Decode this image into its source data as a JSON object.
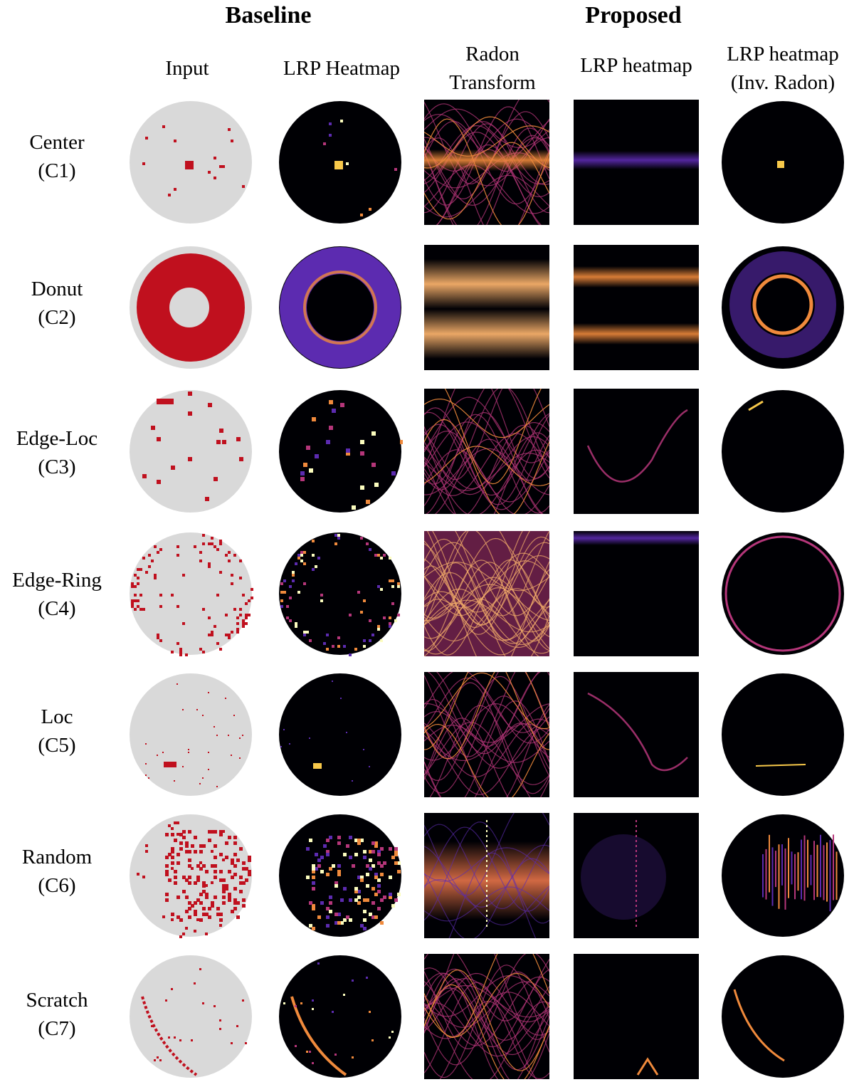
{
  "titles": {
    "baseline": "Baseline",
    "proposed": "Proposed"
  },
  "columns": [
    {
      "line1": "Input",
      "line2": ""
    },
    {
      "line1": "LRP Heatmap",
      "line2": ""
    },
    {
      "line1": "Radon",
      "line2": "Transform"
    },
    {
      "line1": "LRP heatmap",
      "line2": ""
    },
    {
      "line1": "LRP heatmap",
      "line2": "(Inv. Radon)"
    }
  ],
  "rows": [
    {
      "name": "Center",
      "code": "(C1)"
    },
    {
      "name": "Donut",
      "code": "(C2)"
    },
    {
      "name": "Edge-Loc",
      "code": "(C3)"
    },
    {
      "name": "Edge-Ring",
      "code": "(C4)"
    },
    {
      "name": "Loc",
      "code": "(C5)"
    },
    {
      "name": "Random",
      "code": "(C6)"
    },
    {
      "name": "Scratch",
      "code": "(C7)"
    }
  ],
  "colors": {
    "wafer_bg": "#d9d9d9",
    "defect": "#c0101e",
    "heat_low": "#000004",
    "heat_mid": "#b5367a",
    "heat_high": "#fcfdbf",
    "heat_purple": "#5c2bb0"
  }
}
